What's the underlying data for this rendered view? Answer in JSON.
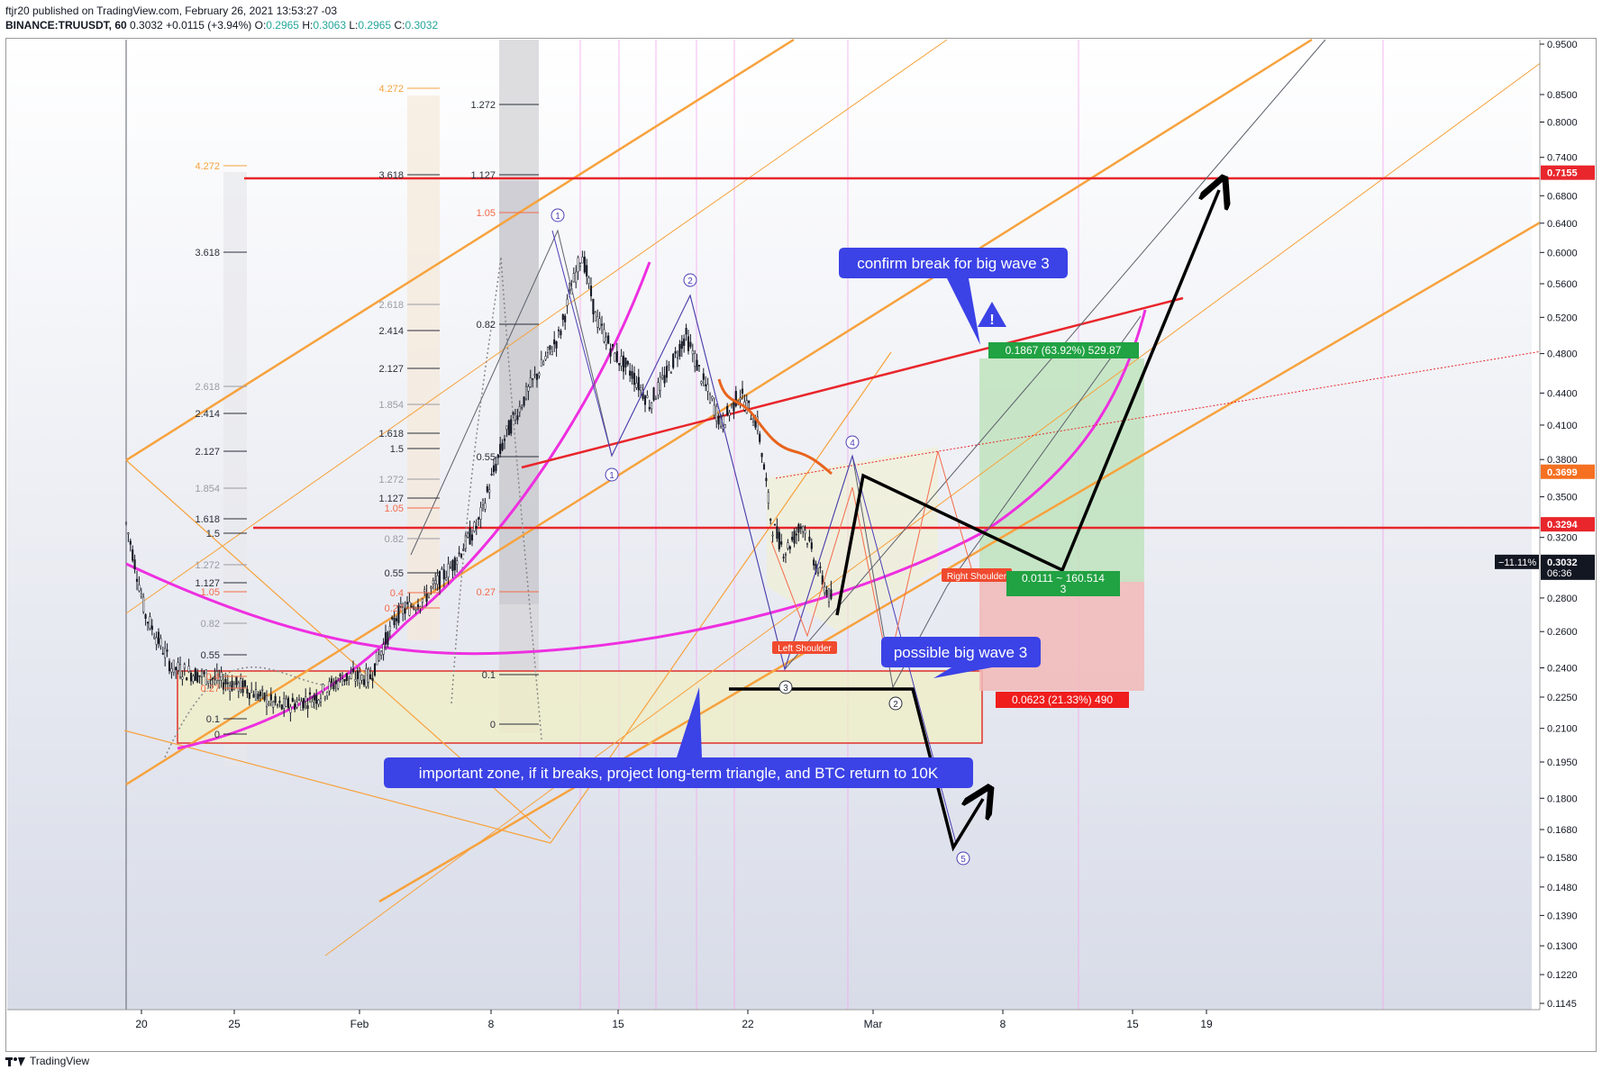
{
  "header": {
    "publish_line": "ftjr20 published on TradingView.com, February 26, 2021 13:53:27 -03",
    "symbol": "BINANCE:TRUUSDT, 60",
    "price": "0.3032",
    "change": "+0.0115 (+3.94%)",
    "ohlc": {
      "o_label": "O:",
      "o": "0.2965",
      "h_label": "H:",
      "h": "0.3063",
      "l_label": "L:",
      "l": "0.2965",
      "c_label": "C:",
      "c": "0.3032"
    }
  },
  "footer": {
    "brand": "TradingView",
    "logo_icon": "tradingview-logo-icon"
  },
  "colors": {
    "up": "#26a69a",
    "down": "#ef5350",
    "channel": "#f7a23d",
    "magenta": "#ee2fe0",
    "red_line": "#e8262b",
    "callout_bg": "#3b42e6",
    "profit_fill": "#bfe3bd",
    "loss_fill": "#f2b9b8",
    "profit_label": "#21a243",
    "loss_label": "#f01d1d",
    "price_tag": "#f57021"
  },
  "chart_data": {
    "type": "line",
    "title": "",
    "scale": "log",
    "xlabel": "",
    "ylabel": "",
    "ylim": [
      0.113,
      1.0
    ],
    "y_ticks": [
      "0.9500",
      "0.8500",
      "0.8000",
      "0.7400",
      "0.6800",
      "0.6400",
      "0.6000",
      "0.5600",
      "0.5200",
      "0.4800",
      "0.4400",
      "0.4100",
      "0.3800",
      "0.3500",
      "0.3200",
      "0.2800",
      "0.2600",
      "0.2400",
      "0.2250",
      "0.2100",
      "0.1950",
      "0.1800",
      "0.1680",
      "0.1580",
      "0.1480",
      "0.1390",
      "0.1300",
      "0.1220",
      "0.1145"
    ],
    "y_tick_values": [
      0.95,
      0.85,
      0.8,
      0.74,
      0.68,
      0.64,
      0.6,
      0.56,
      0.52,
      0.48,
      0.44,
      0.41,
      0.38,
      0.35,
      0.32,
      0.28,
      0.26,
      0.24,
      0.225,
      0.21,
      0.195,
      0.18,
      0.168,
      0.158,
      0.148,
      0.139,
      0.13,
      0.122,
      0.1145
    ],
    "x_ticks": [
      "20",
      "25",
      "Feb",
      "8",
      "15",
      "22",
      "Mar",
      "8",
      "15",
      "19"
    ],
    "price_tags": [
      {
        "label": "0.7155",
        "value": 0.7155,
        "style": "red"
      },
      {
        "label": "0.3699",
        "value": 0.3699,
        "style": "orange"
      },
      {
        "label": "0.3294",
        "value": 0.3294,
        "style": "red"
      },
      {
        "label": "0.3032",
        "value": 0.3032,
        "style": "dark",
        "sub": "06:36",
        "pct": "−11.11%"
      }
    ],
    "horizontal_levels": [
      0.7155,
      0.3294
    ],
    "fib_sets": [
      {
        "levels": [
          "4.272",
          "3.618",
          "2.618",
          "2.414",
          "2.127",
          "1.854",
          "1.618",
          "1.5",
          "1.272",
          "1.127",
          "1.05",
          "0.82",
          "0.55",
          "0.4",
          "0.27",
          "0.1",
          "0"
        ]
      },
      {
        "levels": [
          "4.272",
          "3.618",
          "2.618",
          "2.414",
          "2.127",
          "1.854",
          "1.618",
          "1.5",
          "1.272",
          "1.127",
          "1.05",
          "0.82",
          "0.55",
          "0.4",
          "0.27"
        ]
      },
      {
        "levels": [
          "1.272",
          "1.127",
          "1.05",
          "0.82",
          "0.55",
          "0.27",
          "0.1",
          "0"
        ]
      }
    ],
    "wave_labels": [
      "1",
      "2",
      "1",
      "4",
      "3",
      "2",
      "5"
    ],
    "annotations": {
      "confirm": "confirm break for big wave 3",
      "possible": "possible big wave 3",
      "zone": "important zone, if it breaks, project long-term triangle, and BTC return to 10K",
      "left_shoulder": "Left Shoulder",
      "right_shoulder": "Right Shoulder",
      "profit": "0.1867 (63.92%) 529.87",
      "loss": "0.0623 (21.33%) 490",
      "ratio_line1": "0.0111 ~ 160.514",
      "ratio_line2": "3",
      "warning_icon": "warning-triangle-icon"
    }
  }
}
